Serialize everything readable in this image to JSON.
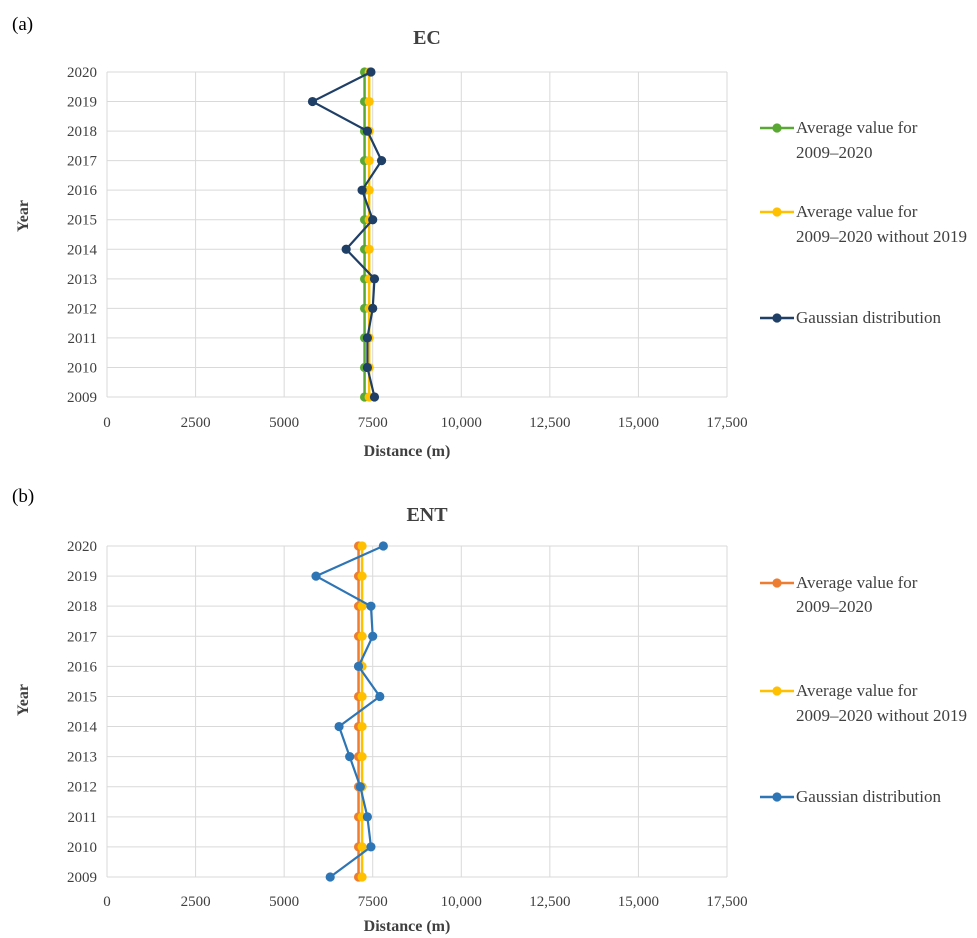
{
  "chart_data": [
    {
      "panel": "(a)",
      "type": "line",
      "title": "EC",
      "xlabel": "Distance (m)",
      "ylabel": "Year",
      "xlim": [
        0,
        17500
      ],
      "x_ticks": [
        "0",
        "2500",
        "5000",
        "7500",
        "10,000",
        "12,500",
        "15,000",
        "17,500"
      ],
      "x_tick_values": [
        0,
        2500,
        5000,
        7500,
        10000,
        12500,
        15000,
        17500
      ],
      "categories": [
        "2009",
        "2010",
        "2011",
        "2012",
        "2013",
        "2014",
        "2015",
        "2016",
        "2017",
        "2018",
        "2019",
        "2020"
      ],
      "grid": true,
      "legend_position": "right",
      "series": [
        {
          "name": "Average value for 2009–2020",
          "color": "#5aa834",
          "values": [
            7270,
            7270,
            7270,
            7270,
            7270,
            7270,
            7270,
            7270,
            7270,
            7270,
            7270,
            7270
          ]
        },
        {
          "name": "Average value for 2009–2020 without 2019",
          "color": "#ffc000",
          "values": [
            7400,
            7400,
            7400,
            7400,
            7400,
            7400,
            7400,
            7400,
            7400,
            7400,
            7400,
            7400
          ]
        },
        {
          "name": "Gaussian distribution",
          "color": "#1f3f66",
          "values": [
            7550,
            7350,
            7350,
            7500,
            7550,
            6750,
            7500,
            7200,
            7750,
            7350,
            5800,
            7450
          ]
        }
      ]
    },
    {
      "panel": "(b)",
      "type": "line",
      "title": "ENT",
      "xlabel": "Distance (m)",
      "ylabel": "Year",
      "xlim": [
        0,
        17500
      ],
      "x_ticks": [
        "0",
        "2500",
        "5000",
        "7500",
        "10,000",
        "12,500",
        "15,000",
        "17,500"
      ],
      "x_tick_values": [
        0,
        2500,
        5000,
        7500,
        10000,
        12500,
        15000,
        17500
      ],
      "categories": [
        "2009",
        "2010",
        "2011",
        "2012",
        "2013",
        "2014",
        "2015",
        "2016",
        "2017",
        "2018",
        "2019",
        "2020"
      ],
      "grid": true,
      "legend_position": "right",
      "series": [
        {
          "name": "Average value for 2009–2020",
          "color": "#ed7d31",
          "values": [
            7100,
            7100,
            7100,
            7100,
            7100,
            7100,
            7100,
            7100,
            7100,
            7100,
            7100,
            7100
          ]
        },
        {
          "name": "Average value for 2009–2020 without 2019",
          "color": "#ffc000",
          "values": [
            7200,
            7200,
            7200,
            7200,
            7200,
            7200,
            7200,
            7200,
            7200,
            7200,
            7200,
            7200
          ]
        },
        {
          "name": "Gaussian distribution",
          "color": "#2e75b6",
          "values": [
            6300,
            7450,
            7350,
            7150,
            6850,
            6550,
            7700,
            7100,
            7500,
            7450,
            5900,
            7800
          ]
        }
      ]
    }
  ]
}
